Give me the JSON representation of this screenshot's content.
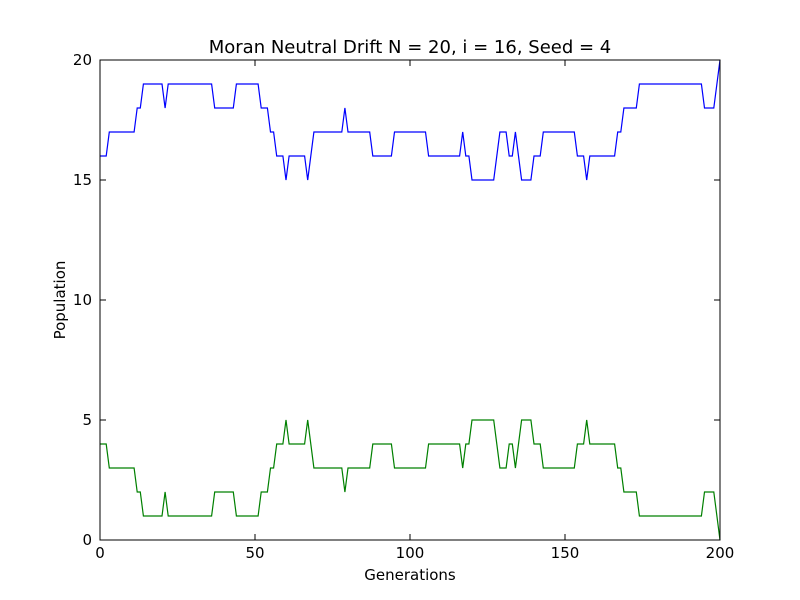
{
  "chart_data": {
    "type": "line",
    "title": "Moran Neutral Drift N = 20, i = 16, Seed = 4",
    "xlabel": "Generations",
    "ylabel": "Population",
    "xlim": [
      0,
      200
    ],
    "ylim": [
      0,
      20
    ],
    "x_ticks": [
      "0",
      "50",
      "100",
      "150",
      "200"
    ],
    "y_ticks": [
      "0",
      "5",
      "10",
      "15",
      "20"
    ],
    "grid": false,
    "series": [
      {
        "color": "#0000ff",
        "points": [
          [
            0,
            16
          ],
          [
            2,
            16
          ],
          [
            3,
            17
          ],
          [
            11,
            17
          ],
          [
            12,
            18
          ],
          [
            13,
            18
          ],
          [
            14,
            19
          ],
          [
            20,
            19
          ],
          [
            21,
            18
          ],
          [
            22,
            19
          ],
          [
            36,
            19
          ],
          [
            37,
            18
          ],
          [
            43,
            18
          ],
          [
            44,
            19
          ],
          [
            51,
            19
          ],
          [
            52,
            18
          ],
          [
            54,
            18
          ],
          [
            55,
            17
          ],
          [
            56,
            17
          ],
          [
            57,
            16
          ],
          [
            59,
            16
          ],
          [
            60,
            15
          ],
          [
            61,
            16
          ],
          [
            66,
            16
          ],
          [
            67,
            15
          ],
          [
            68,
            16
          ],
          [
            69,
            17
          ],
          [
            78,
            17
          ],
          [
            79,
            18
          ],
          [
            80,
            17
          ],
          [
            87,
            17
          ],
          [
            88,
            16
          ],
          [
            94,
            16
          ],
          [
            95,
            17
          ],
          [
            105,
            17
          ],
          [
            106,
            16
          ],
          [
            116,
            16
          ],
          [
            117,
            17
          ],
          [
            118,
            16
          ],
          [
            119,
            16
          ],
          [
            120,
            15
          ],
          [
            127,
            15
          ],
          [
            128,
            16
          ],
          [
            129,
            17
          ],
          [
            131,
            17
          ],
          [
            132,
            16
          ],
          [
            133,
            16
          ],
          [
            134,
            17
          ],
          [
            135,
            16
          ],
          [
            136,
            15
          ],
          [
            139,
            15
          ],
          [
            140,
            16
          ],
          [
            142,
            16
          ],
          [
            143,
            17
          ],
          [
            153,
            17
          ],
          [
            154,
            16
          ],
          [
            156,
            16
          ],
          [
            157,
            15
          ],
          [
            158,
            16
          ],
          [
            166,
            16
          ],
          [
            167,
            17
          ],
          [
            168,
            17
          ],
          [
            169,
            18
          ],
          [
            173,
            18
          ],
          [
            174,
            19
          ],
          [
            194,
            19
          ],
          [
            195,
            18
          ],
          [
            198,
            18
          ],
          [
            200,
            20
          ]
        ]
      },
      {
        "color": "#008000",
        "points": [
          [
            0,
            4
          ],
          [
            2,
            4
          ],
          [
            3,
            3
          ],
          [
            11,
            3
          ],
          [
            12,
            2
          ],
          [
            13,
            2
          ],
          [
            14,
            1
          ],
          [
            20,
            1
          ],
          [
            21,
            2
          ],
          [
            22,
            1
          ],
          [
            36,
            1
          ],
          [
            37,
            2
          ],
          [
            43,
            2
          ],
          [
            44,
            1
          ],
          [
            51,
            1
          ],
          [
            52,
            2
          ],
          [
            54,
            2
          ],
          [
            55,
            3
          ],
          [
            56,
            3
          ],
          [
            57,
            4
          ],
          [
            59,
            4
          ],
          [
            60,
            5
          ],
          [
            61,
            4
          ],
          [
            66,
            4
          ],
          [
            67,
            5
          ],
          [
            68,
            4
          ],
          [
            69,
            3
          ],
          [
            78,
            3
          ],
          [
            79,
            2
          ],
          [
            80,
            3
          ],
          [
            87,
            3
          ],
          [
            88,
            4
          ],
          [
            94,
            4
          ],
          [
            95,
            3
          ],
          [
            105,
            3
          ],
          [
            106,
            4
          ],
          [
            116,
            4
          ],
          [
            117,
            3
          ],
          [
            118,
            4
          ],
          [
            119,
            4
          ],
          [
            120,
            5
          ],
          [
            127,
            5
          ],
          [
            128,
            4
          ],
          [
            129,
            3
          ],
          [
            131,
            3
          ],
          [
            132,
            4
          ],
          [
            133,
            4
          ],
          [
            134,
            3
          ],
          [
            135,
            4
          ],
          [
            136,
            5
          ],
          [
            139,
            5
          ],
          [
            140,
            4
          ],
          [
            142,
            4
          ],
          [
            143,
            3
          ],
          [
            153,
            3
          ],
          [
            154,
            4
          ],
          [
            156,
            4
          ],
          [
            157,
            5
          ],
          [
            158,
            4
          ],
          [
            166,
            4
          ],
          [
            167,
            3
          ],
          [
            168,
            3
          ],
          [
            169,
            2
          ],
          [
            173,
            2
          ],
          [
            174,
            1
          ],
          [
            194,
            1
          ],
          [
            195,
            2
          ],
          [
            198,
            2
          ],
          [
            200,
            0
          ]
        ]
      }
    ]
  }
}
